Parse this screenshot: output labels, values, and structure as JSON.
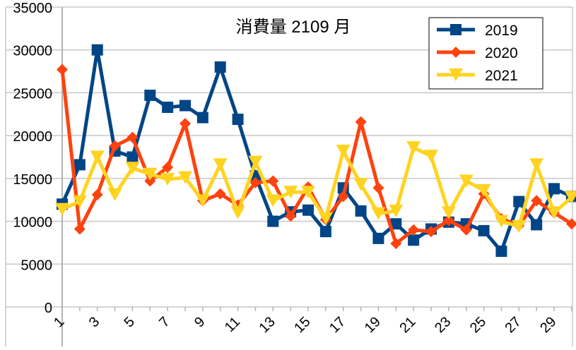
{
  "chart_data": {
    "type": "line",
    "title": "消費量 2109 月",
    "xlabel": "",
    "ylabel": "",
    "x": [
      1,
      2,
      3,
      4,
      5,
      6,
      7,
      8,
      9,
      10,
      11,
      12,
      13,
      14,
      15,
      16,
      17,
      18,
      19,
      20,
      21,
      22,
      23,
      24,
      25,
      26,
      27,
      28,
      29,
      30
    ],
    "x_tick_labels": [
      "1",
      "3",
      "5",
      "7",
      "9",
      "11",
      "13",
      "15",
      "17",
      "19",
      "21",
      "23",
      "25",
      "27",
      "29"
    ],
    "x_tick_values": [
      1,
      3,
      5,
      7,
      9,
      11,
      13,
      15,
      17,
      19,
      21,
      23,
      25,
      27,
      29
    ],
    "ylim": [
      0,
      35000
    ],
    "y_ticks": [
      0,
      5000,
      10000,
      15000,
      20000,
      25000,
      30000,
      35000
    ],
    "grid": true,
    "legend_position": "top-right",
    "series": [
      {
        "name": "2019",
        "color": "#004586",
        "marker": "square",
        "values": [
          12000,
          16600,
          30000,
          18200,
          17500,
          24700,
          23300,
          23500,
          22100,
          28000,
          21900,
          15300,
          10000,
          11100,
          11300,
          8800,
          13900,
          11200,
          8000,
          9700,
          7800,
          9100,
          9900,
          9700,
          8900,
          6500,
          12300,
          9600,
          13800,
          12900
        ]
      },
      {
        "name": "2020",
        "color": "#ff420e",
        "marker": "diamond",
        "values": [
          27700,
          9100,
          13100,
          18800,
          19800,
          14700,
          16300,
          21400,
          12400,
          13200,
          11900,
          14500,
          14700,
          10600,
          14000,
          10200,
          12900,
          21600,
          13900,
          7400,
          9000,
          8800,
          10100,
          9000,
          13200,
          10300,
          9500,
          12400,
          11000,
          9700
        ]
      },
      {
        "name": "2021",
        "color": "#ffd320",
        "marker": "triangle-down",
        "values": [
          11400,
          12300,
          17500,
          13100,
          16200,
          15500,
          14900,
          15100,
          12400,
          16600,
          11000,
          16900,
          12400,
          13400,
          13400,
          10300,
          18200,
          14300,
          10900,
          11200,
          18600,
          17600,
          11000,
          14700,
          13600,
          10000,
          9400,
          16600,
          11000,
          12800
        ]
      }
    ]
  }
}
